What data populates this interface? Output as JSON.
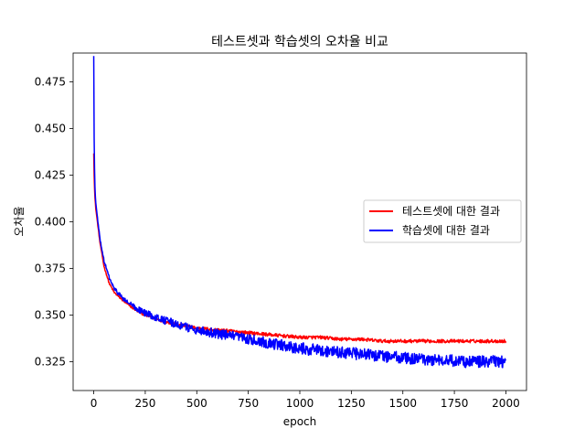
{
  "chart_data": {
    "type": "line",
    "title": "테스트셋과 학습셋의 오차율 비교",
    "xlabel": "epoch",
    "ylabel": "오차율",
    "xlim": [
      -100,
      2100
    ],
    "ylim": [
      0.3095,
      0.4905
    ],
    "xticks": [
      0,
      250,
      500,
      750,
      1000,
      1250,
      1500,
      1750,
      2000
    ],
    "yticks": [
      0.325,
      0.35,
      0.375,
      0.4,
      0.425,
      0.45,
      0.475
    ],
    "xtick_labels": [
      "0",
      "250",
      "500",
      "750",
      "1000",
      "1250",
      "1500",
      "1750",
      "2000"
    ],
    "ytick_labels": [
      "0.325",
      "0.350",
      "0.375",
      "0.400",
      "0.425",
      "0.450",
      "0.475"
    ],
    "grid": false,
    "legend_position": "center-right",
    "series": [
      {
        "name": "테스트셋에 대한 결과",
        "color": "#ff0000",
        "x": [
          0,
          2,
          5,
          10,
          20,
          30,
          50,
          75,
          100,
          150,
          200,
          250,
          300,
          400,
          500,
          600,
          700,
          800,
          900,
          1000,
          1100,
          1200,
          1300,
          1400,
          1500,
          1600,
          1700,
          1800,
          1900,
          2000
        ],
        "y": [
          0.437,
          0.425,
          0.414,
          0.407,
          0.398,
          0.389,
          0.376,
          0.367,
          0.362,
          0.357,
          0.353,
          0.35,
          0.348,
          0.345,
          0.343,
          0.342,
          0.341,
          0.34,
          0.339,
          0.338,
          0.338,
          0.337,
          0.337,
          0.336,
          0.336,
          0.336,
          0.336,
          0.336,
          0.336,
          0.336
        ],
        "noise": 0.0009
      },
      {
        "name": "학습셋에 대한 결과",
        "color": "#0000ff",
        "x": [
          0,
          2,
          5,
          10,
          20,
          30,
          50,
          75,
          100,
          150,
          200,
          250,
          300,
          400,
          500,
          600,
          700,
          800,
          900,
          1000,
          1100,
          1200,
          1300,
          1400,
          1500,
          1600,
          1700,
          1800,
          1900,
          2000
        ],
        "y": [
          0.489,
          0.445,
          0.42,
          0.41,
          0.4,
          0.391,
          0.379,
          0.37,
          0.364,
          0.358,
          0.354,
          0.351,
          0.349,
          0.345,
          0.342,
          0.34,
          0.338,
          0.336,
          0.334,
          0.332,
          0.331,
          0.33,
          0.329,
          0.328,
          0.327,
          0.326,
          0.326,
          0.325,
          0.325,
          0.325
        ],
        "noise": 0.0032
      }
    ]
  }
}
